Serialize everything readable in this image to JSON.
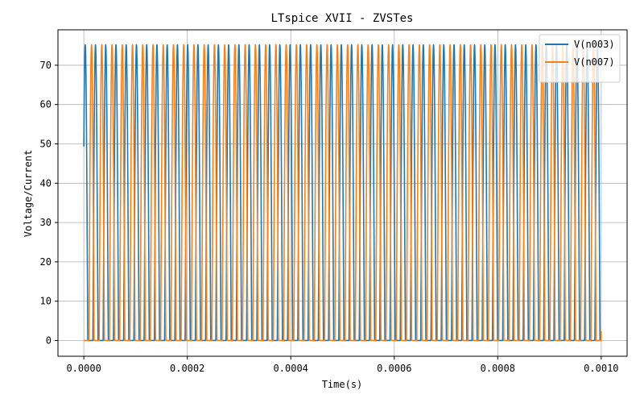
{
  "chart_data": {
    "type": "line",
    "title": "LTspice XVII - ZVSTes",
    "xlabel": "Time(s)",
    "ylabel": "Voltage/Current",
    "xlim": [
      -5e-05,
      0.00105
    ],
    "ylim": [
      -4,
      79
    ],
    "xticks": [
      0.0,
      0.0002,
      0.0004,
      0.0006,
      0.0008,
      0.001
    ],
    "xtick_labels": [
      "0.0000",
      "0.0002",
      "0.0004",
      "0.0006",
      "0.0008",
      "0.0010"
    ],
    "yticks": [
      0,
      10,
      20,
      30,
      40,
      50,
      60,
      70
    ],
    "ytick_labels": [
      "0",
      "10",
      "20",
      "30",
      "40",
      "50",
      "60",
      "70"
    ],
    "grid": true,
    "legend": "top-right",
    "x_range": [
      0.0,
      0.001
    ],
    "period": 1.98e-05,
    "peak": 75.2,
    "series": [
      {
        "name": "V(n003)",
        "color": "#1f77b4",
        "start_value": 49.3,
        "cycles": 50
      },
      {
        "name": "V(n007)",
        "color": "#ff7f0e",
        "start_value": 0,
        "cycles": 50
      }
    ]
  }
}
